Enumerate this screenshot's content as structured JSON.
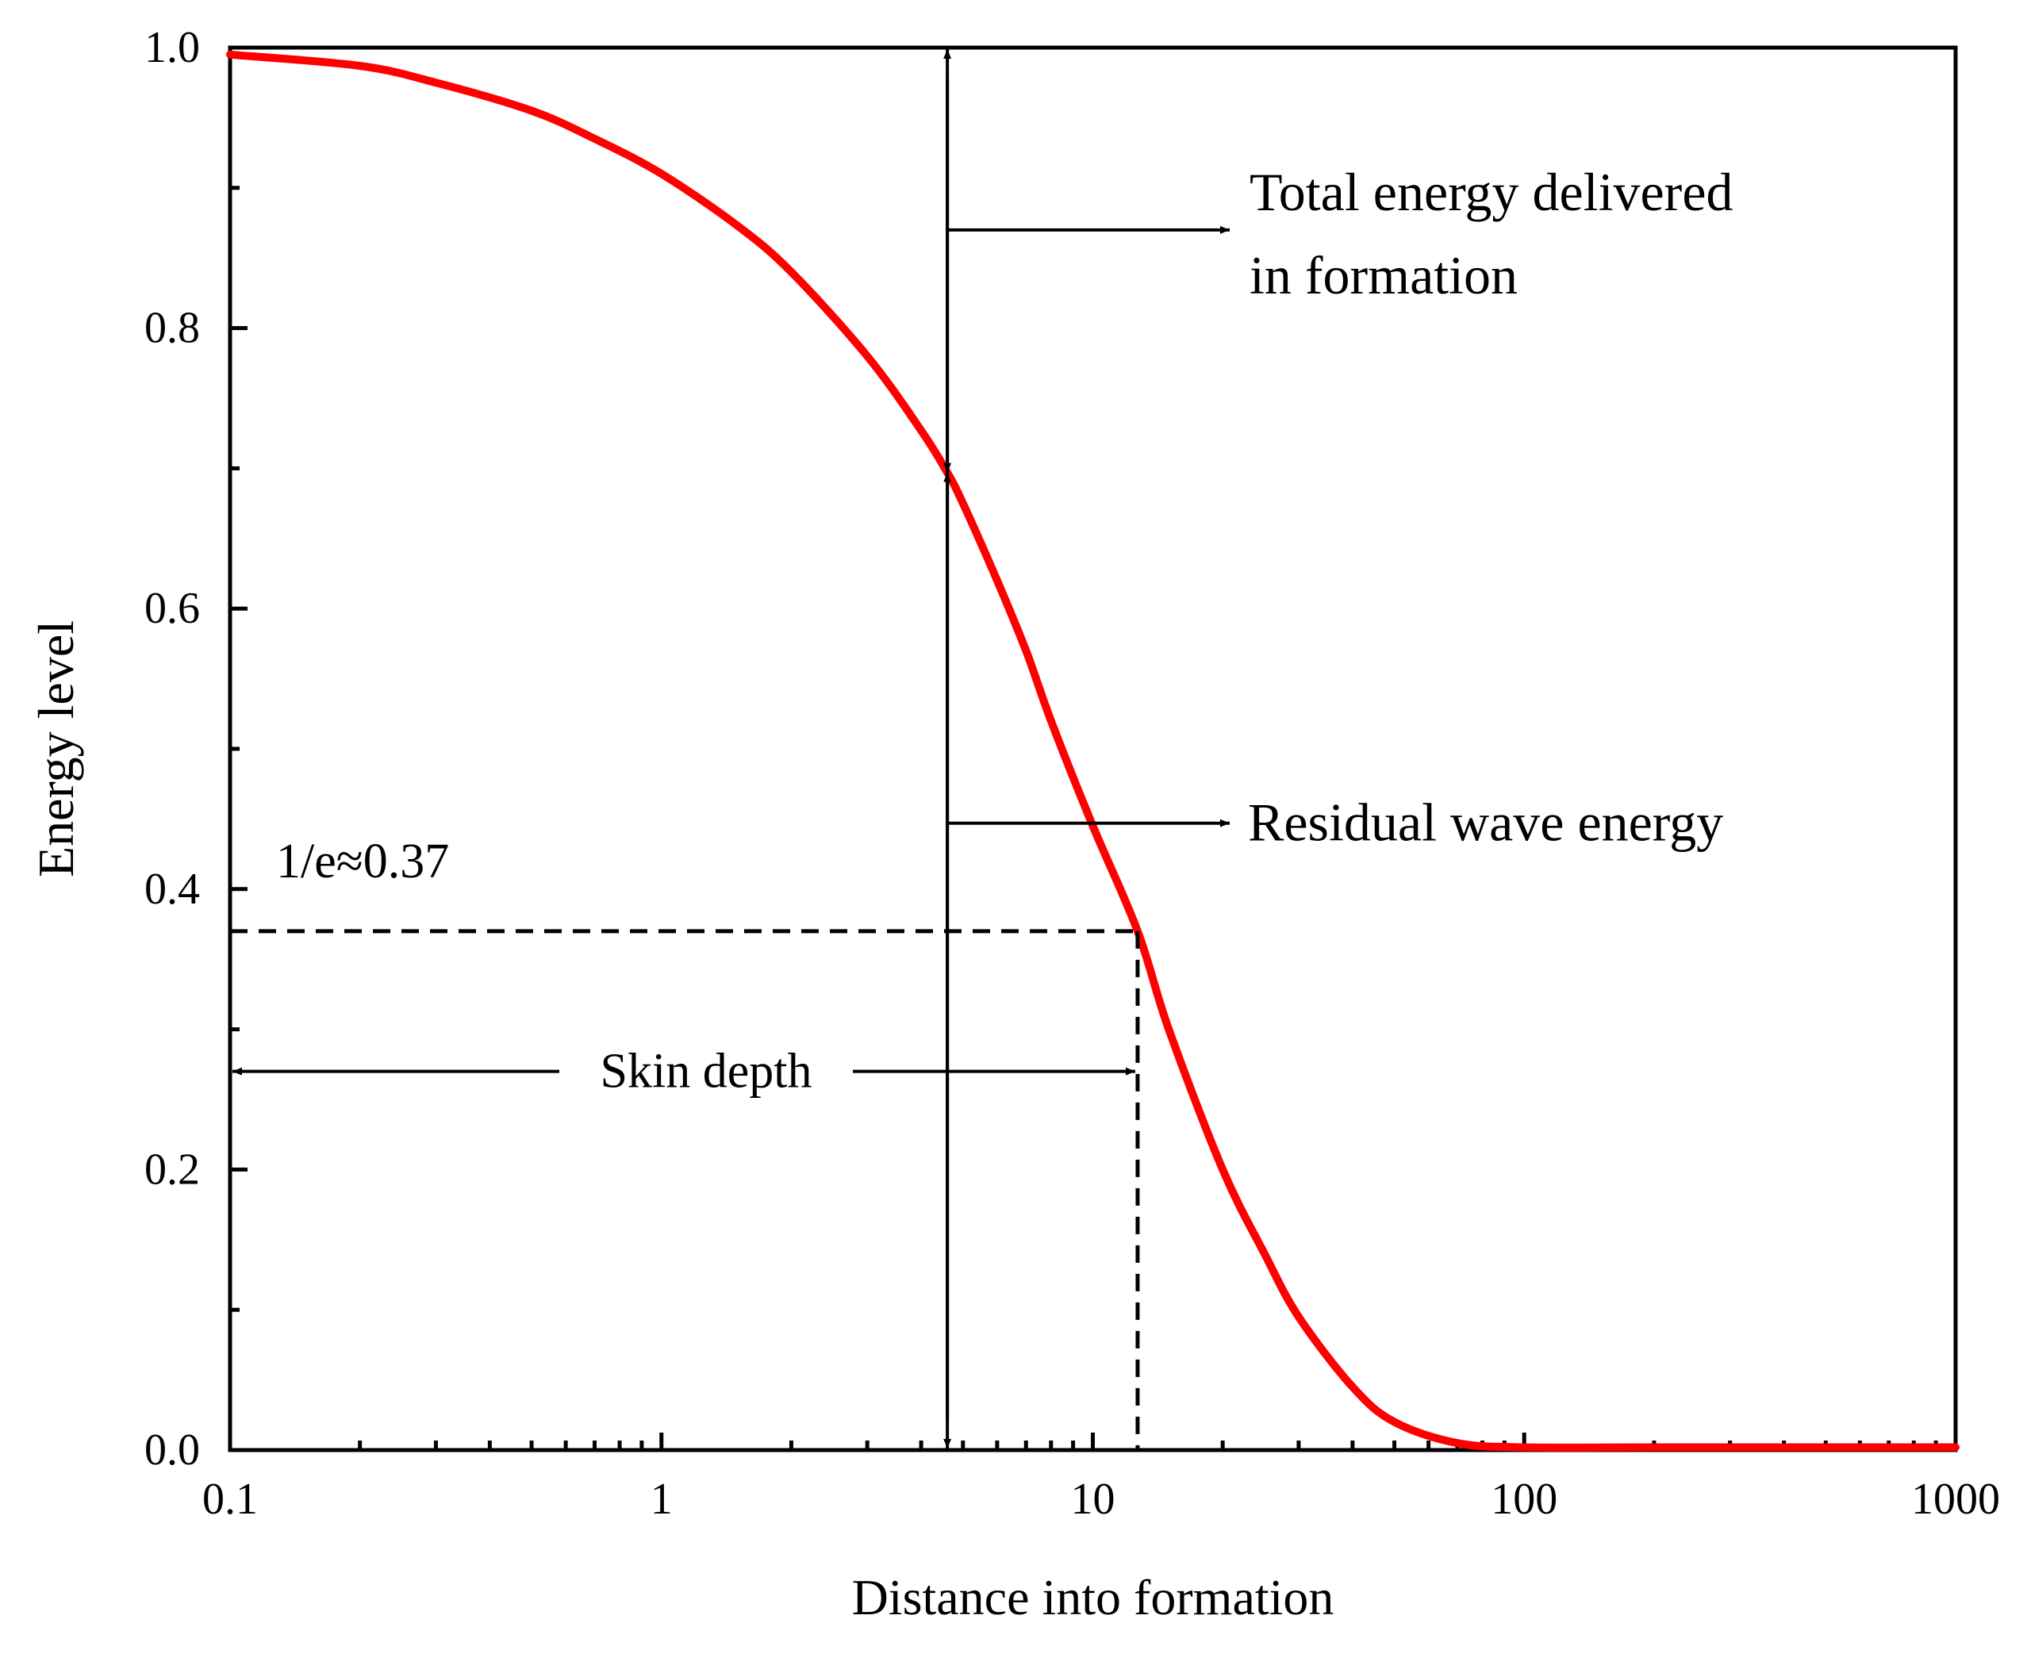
{
  "chart_data": {
    "type": "line",
    "title": "",
    "xlabel": "Distance into formation",
    "ylabel": "Energy level",
    "xscale": "log",
    "xlim": [
      0.1,
      1000
    ],
    "ylim": [
      0.0,
      1.0
    ],
    "xticks": [
      0.1,
      1,
      10,
      100,
      1000
    ],
    "xtick_labels": [
      "0.1",
      "1",
      "10",
      "100",
      "1000"
    ],
    "yticks": [
      0.0,
      0.2,
      0.4,
      0.6,
      0.8,
      1.0
    ],
    "ytick_labels": [
      "0.0",
      "0.2",
      "0.4",
      "0.6",
      "0.8",
      "1.0"
    ],
    "grid": false,
    "series": [
      {
        "name": "Energy level",
        "color": "#ff0000",
        "x": [
          0.1,
          0.2,
          0.3,
          0.5,
          0.7,
          1,
          1.5,
          2,
          3,
          4,
          4.6,
          5,
          6,
          7,
          8,
          10,
          12.7,
          15,
          20,
          25,
          30,
          40,
          50,
          70,
          100,
          200,
          500,
          1000
        ],
        "y": [
          0.995,
          0.987,
          0.975,
          0.955,
          0.935,
          0.91,
          0.873,
          0.84,
          0.78,
          0.727,
          0.697,
          0.675,
          0.62,
          0.57,
          0.52,
          0.445,
          0.37,
          0.3,
          0.2,
          0.14,
          0.095,
          0.045,
          0.02,
          0.005,
          0.002,
          0.002,
          0.002,
          0.002
        ]
      }
    ],
    "annotations": {
      "threshold_label": "1/e≈0.37",
      "threshold_value": 0.37,
      "skin_depth_x": 12.7,
      "skin_depth_label": "Skin depth",
      "skin_depth_arrow_y": 0.27,
      "marker_x": 4.6,
      "marker_y": 0.697,
      "total_label_line1": "Total energy delivered",
      "total_label_line2": "in formation",
      "total_arrow_y": 0.87,
      "residual_label": "Residual wave energy",
      "residual_arrow_y": 0.447
    }
  }
}
